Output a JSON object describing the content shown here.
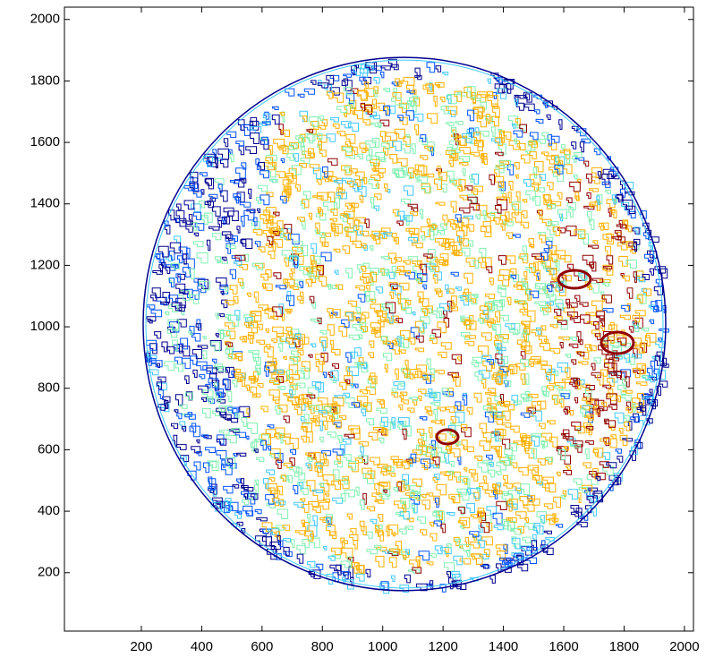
{
  "chart_data": {
    "type": "contour",
    "xlim": [
      -55,
      2030
    ],
    "ylim": [
      10,
      2040
    ],
    "xticks": [
      200,
      400,
      600,
      800,
      1000,
      1200,
      1400,
      1600,
      1800,
      2000
    ],
    "yticks": [
      200,
      400,
      600,
      800,
      1000,
      1200,
      1400,
      1600,
      1800,
      2000
    ],
    "colors": [
      "#00008f",
      "#0050ff",
      "#40c8ff",
      "#80f0b0",
      "#ffb000",
      "#900000"
    ]
  }
}
